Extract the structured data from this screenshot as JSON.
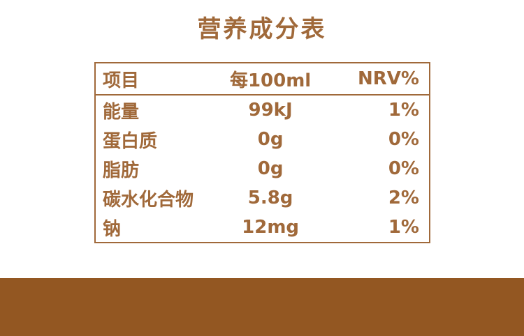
{
  "page": {
    "background_color": "#ffffff",
    "accent_text_color": "#A0693A",
    "footer_bar_color": "#935722"
  },
  "title": "营养成分表",
  "table": {
    "headers": [
      "项目",
      "每100ml",
      "NRV%"
    ],
    "rows": [
      {
        "name": "能量",
        "per100ml": "99kJ",
        "nrv": "1%"
      },
      {
        "name": "蛋白质",
        "per100ml": "0g",
        "nrv": "0%"
      },
      {
        "name": "脂肪",
        "per100ml": "0g",
        "nrv": "0%"
      },
      {
        "name": "碳水化合物",
        "per100ml": "5.8g",
        "nrv": "2%"
      },
      {
        "name": "钠",
        "per100ml": "12mg",
        "nrv": "1%"
      }
    ]
  }
}
